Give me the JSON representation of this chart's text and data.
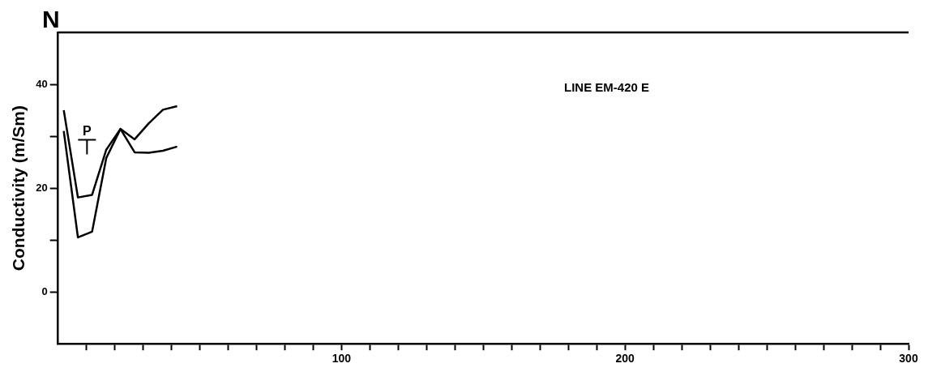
{
  "chart_data": {
    "type": "line",
    "title": "N",
    "subtitle": "LINE EM-420 E",
    "ylabel": "Conductivity (m/Sm)",
    "xlim": [
      0,
      300
    ],
    "ylim": [
      -10,
      50
    ],
    "xticks": [
      {
        "value": 10,
        "label": null
      },
      {
        "value": 20,
        "label": null
      },
      {
        "value": 30,
        "label": null
      },
      {
        "value": 40,
        "label": null
      },
      {
        "value": 50,
        "label": null
      },
      {
        "value": 60,
        "label": null
      },
      {
        "value": 70,
        "label": null
      },
      {
        "value": 80,
        "label": null
      },
      {
        "value": 90,
        "label": null
      },
      100,
      {
        "value": 110,
        "label": null
      },
      {
        "value": 120,
        "label": null
      },
      {
        "value": 130,
        "label": null
      },
      {
        "value": 140,
        "label": null
      },
      {
        "value": 150,
        "label": null
      },
      {
        "value": 160,
        "label": null
      },
      {
        "value": 170,
        "label": null
      },
      {
        "value": 180,
        "label": null
      },
      {
        "value": 190,
        "label": null
      },
      200,
      {
        "value": 210,
        "label": null
      },
      {
        "value": 220,
        "label": null
      },
      {
        "value": 230,
        "label": null
      },
      {
        "value": 240,
        "label": null
      },
      {
        "value": 250,
        "label": null
      },
      {
        "value": 260,
        "label": null
      },
      {
        "value": 270,
        "label": null
      },
      {
        "value": 280,
        "label": null
      },
      {
        "value": 290,
        "label": null
      },
      300
    ],
    "yticks": [
      0,
      {
        "value": 10,
        "label": null
      },
      20,
      {
        "value": 30,
        "label": null
      },
      40
    ],
    "grid": false,
    "legend": false,
    "marker": "none",
    "line_style": "solid",
    "annotations": [
      "P"
    ],
    "series": [
      {
        "color": "#000000",
        "x": [
          2,
          7,
          12,
          17,
          22,
          27,
          32,
          37,
          42
        ],
        "values": [
          35,
          18.2,
          18.7,
          27.4,
          31.4,
          29.4,
          32.5,
          35.1,
          35.8
        ]
      },
      {
        "color": "#000000",
        "x": [
          2,
          7,
          12,
          17,
          22,
          27,
          32,
          37,
          42
        ],
        "values": [
          31,
          10.5,
          11.6,
          25.8,
          31.4,
          26.9,
          26.8,
          27.2,
          28
        ]
      }
    ]
  }
}
